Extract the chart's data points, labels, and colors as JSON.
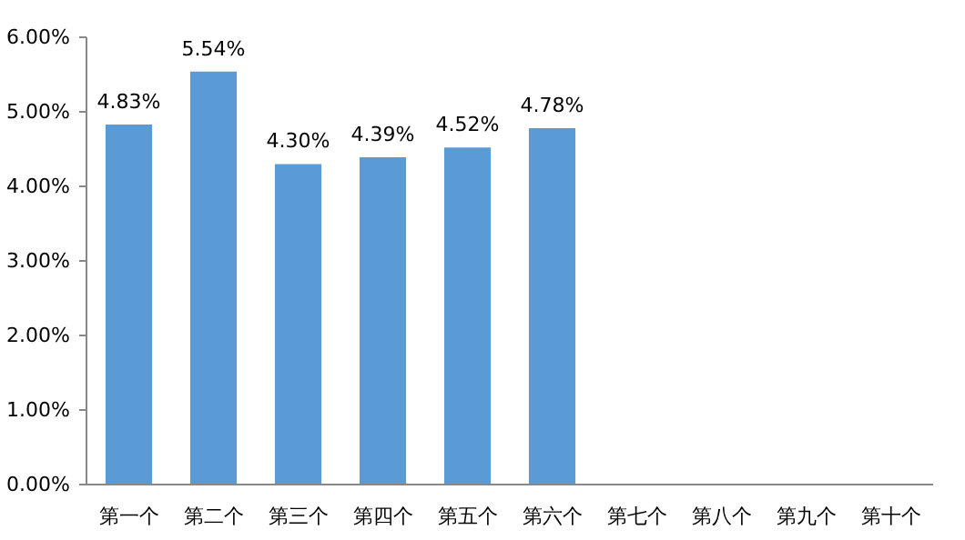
{
  "chart_data": {
    "type": "bar",
    "categories": [
      "第一个",
      "第二个",
      "第三个",
      "第四个",
      "第五个",
      "第六个",
      "第七个",
      "第八个",
      "第九个",
      "第十个"
    ],
    "values": [
      4.83,
      5.54,
      4.3,
      4.39,
      4.52,
      4.78,
      null,
      null,
      null,
      null
    ],
    "value_labels": [
      "4.83%",
      "5.54%",
      "4.30%",
      "4.39%",
      "4.52%",
      "4.78%",
      null,
      null,
      null,
      null
    ],
    "color": "#5b9bd5",
    "ylim": [
      0,
      6
    ],
    "yticks": [
      {
        "value": 0,
        "label": "0.00%"
      },
      {
        "value": 1,
        "label": "1.00%"
      },
      {
        "value": 2,
        "label": "2.00%"
      },
      {
        "value": 3,
        "label": "3.00%"
      },
      {
        "value": 4,
        "label": "4.00%"
      },
      {
        "value": 5,
        "label": "5.00%"
      },
      {
        "value": 6,
        "label": "6.00%"
      }
    ],
    "grid": false
  }
}
